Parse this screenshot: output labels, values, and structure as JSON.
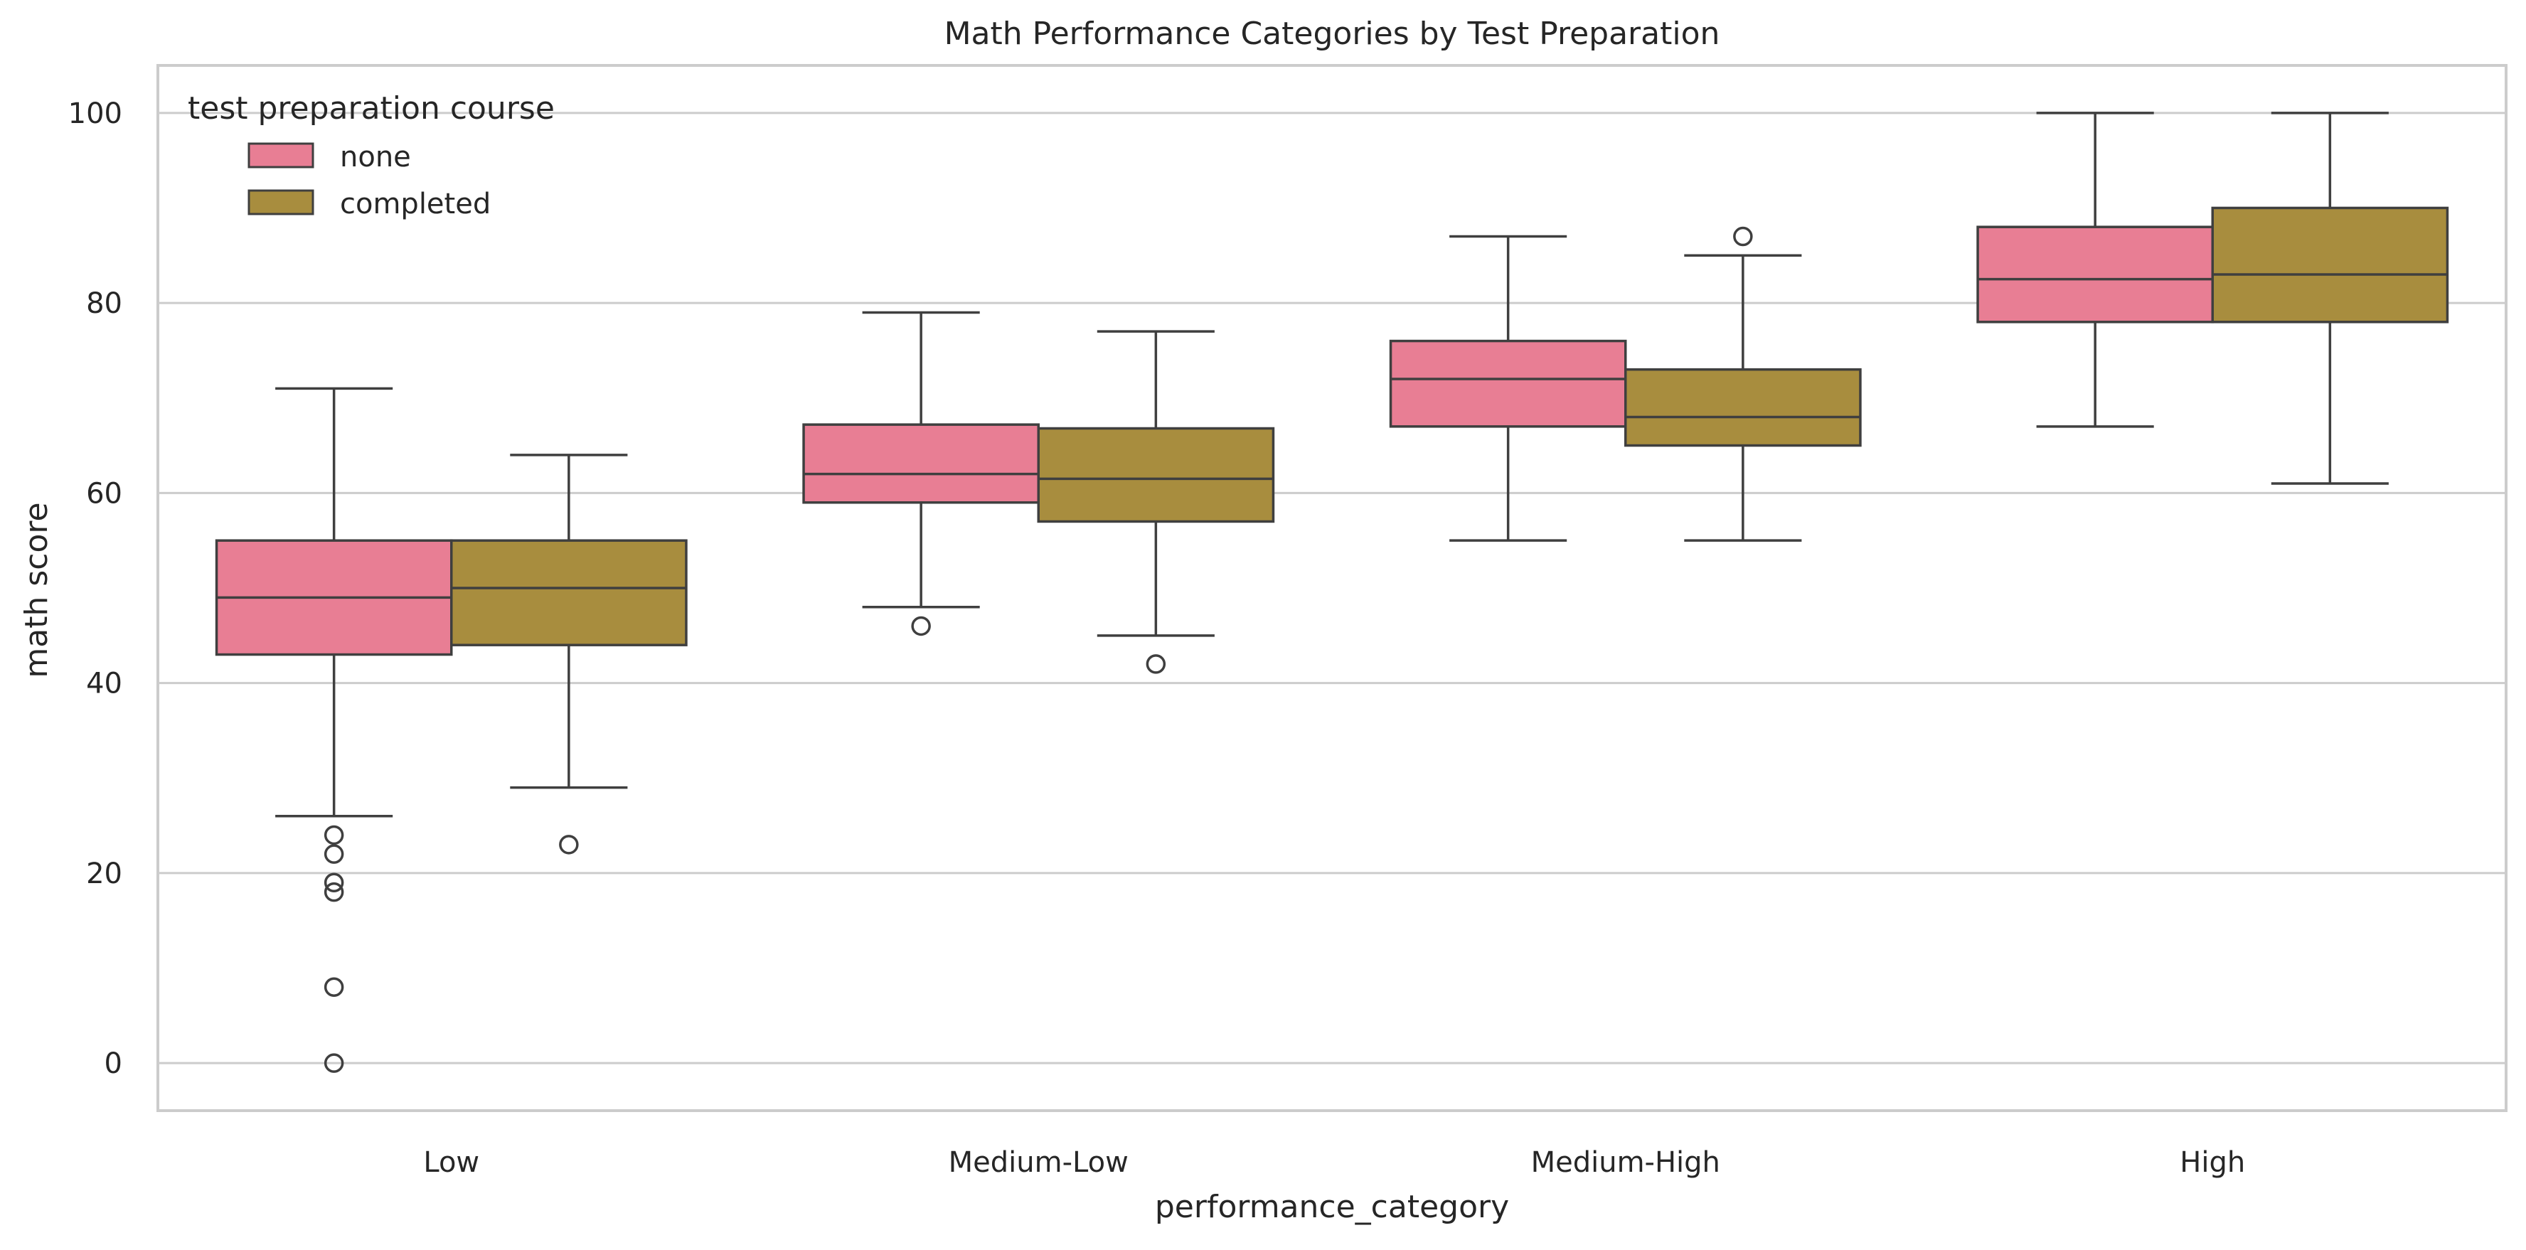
{
  "chart_data": {
    "type": "box",
    "title": "Math Performance Categories by Test Preparation",
    "xlabel": "performance_category",
    "ylabel": "math score",
    "ylim": [
      -5,
      105
    ],
    "yticks": [
      0,
      20,
      40,
      60,
      80,
      100
    ],
    "grid": "horizontal",
    "legend": {
      "title": "test preparation course",
      "placement": "top-left",
      "entries": [
        "none",
        "completed"
      ]
    },
    "categories": [
      "Low",
      "Medium-Low",
      "Medium-High",
      "High"
    ],
    "series": [
      {
        "name": "none",
        "color": "#e87e94",
        "boxes": [
          {
            "category": "Low",
            "whisker_low": 26,
            "q1": 43,
            "median": 49,
            "q3": 55,
            "whisker_high": 71,
            "outliers": [
              24,
              22,
              19,
              18,
              8,
              0
            ]
          },
          {
            "category": "Medium-Low",
            "whisker_low": 48,
            "q1": 59,
            "median": 62,
            "q3": 67.2,
            "whisker_high": 79,
            "outliers": [
              46
            ]
          },
          {
            "category": "Medium-High",
            "whisker_low": 55,
            "q1": 67,
            "median": 72,
            "q3": 76,
            "whisker_high": 87,
            "outliers": []
          },
          {
            "category": "High",
            "whisker_low": 67,
            "q1": 78,
            "median": 82.5,
            "q3": 88,
            "whisker_high": 100,
            "outliers": []
          }
        ]
      },
      {
        "name": "completed",
        "color": "#a88d3e",
        "boxes": [
          {
            "category": "Low",
            "whisker_low": 29,
            "q1": 44,
            "median": 50,
            "q3": 55,
            "whisker_high": 64,
            "outliers": [
              23
            ]
          },
          {
            "category": "Medium-Low",
            "whisker_low": 45,
            "q1": 57,
            "median": 61.5,
            "q3": 66.8,
            "whisker_high": 77,
            "outliers": [
              42
            ]
          },
          {
            "category": "Medium-High",
            "whisker_low": 55,
            "q1": 65,
            "median": 68,
            "q3": 73,
            "whisker_high": 85,
            "outliers": [
              87
            ]
          },
          {
            "category": "High",
            "whisker_low": 61,
            "q1": 78,
            "median": 83,
            "q3": 90,
            "whisker_high": 100,
            "outliers": []
          }
        ]
      }
    ]
  }
}
